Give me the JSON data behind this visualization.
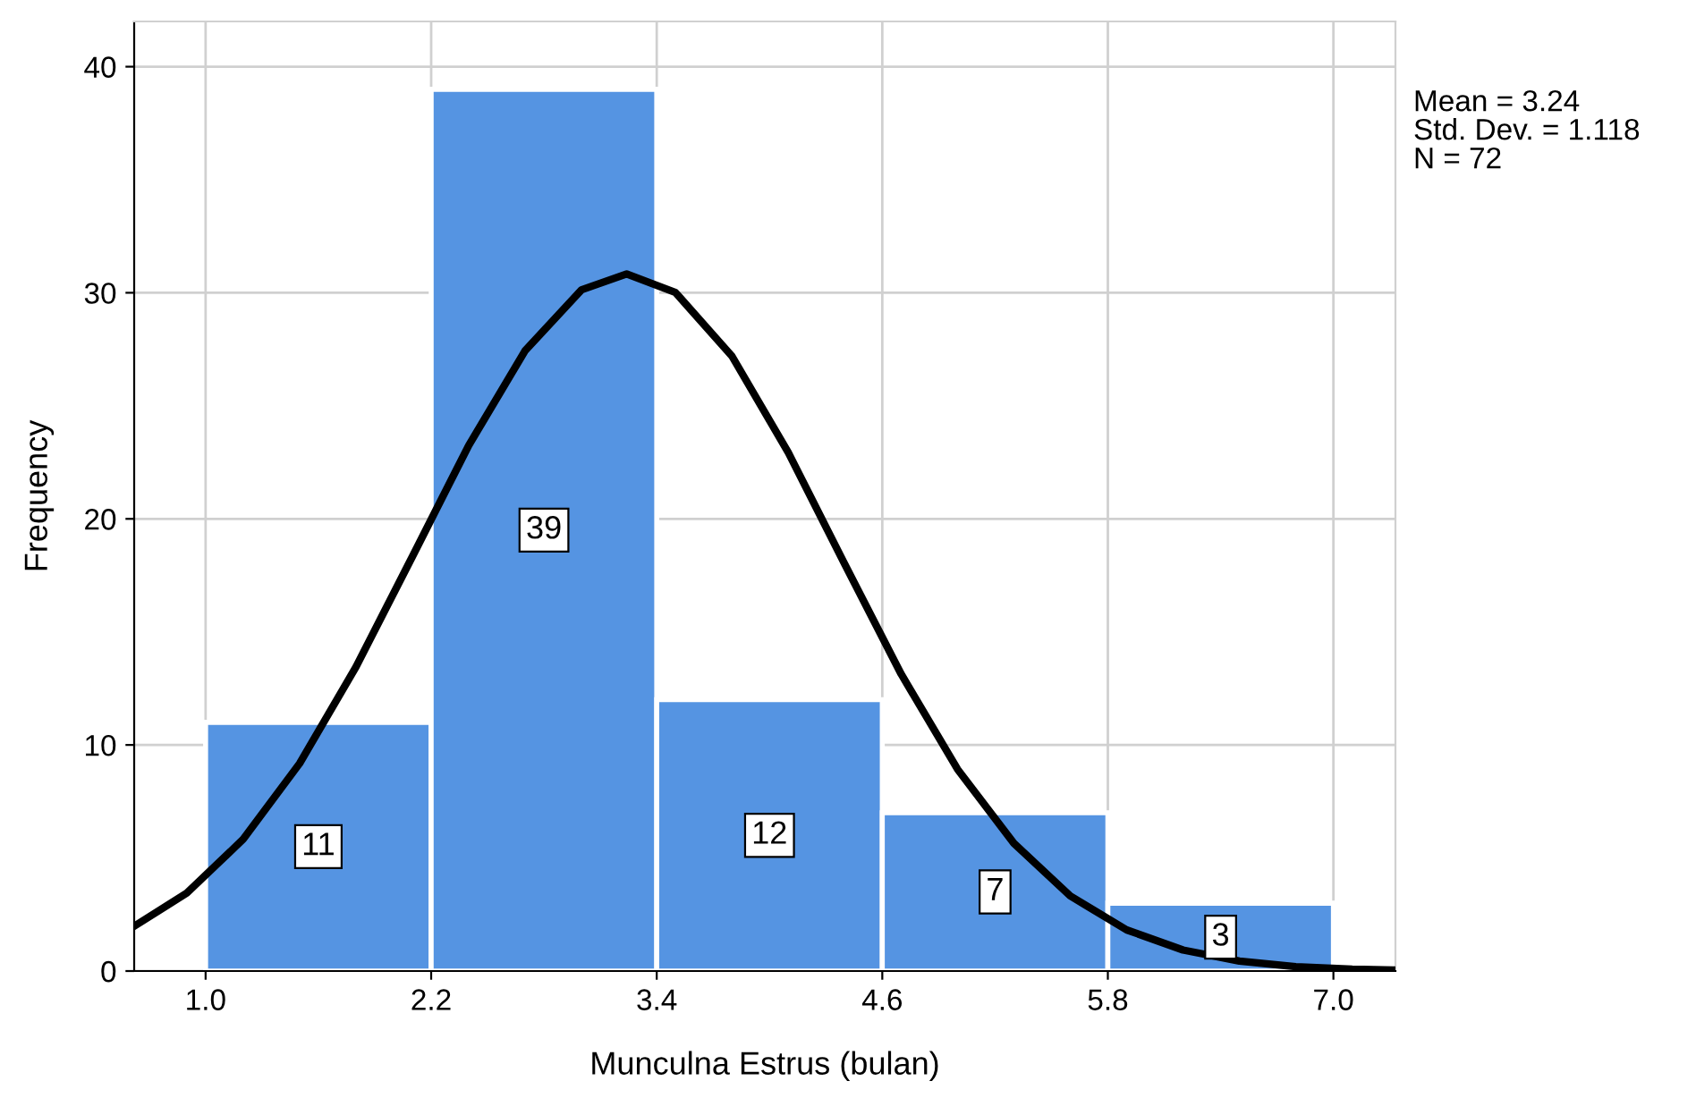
{
  "chart_data": {
    "type": "histogram",
    "xlabel": "Munculna Estrus (bulan)",
    "ylabel": "Frequency",
    "bins": [
      1.0,
      2.2,
      3.4,
      4.6,
      5.8,
      7.0
    ],
    "values": [
      11,
      39,
      12,
      7,
      3
    ],
    "color": "#5594e2",
    "value_labels": [
      "11",
      "39",
      "12",
      "7",
      "3"
    ],
    "xlim": [
      0.62,
      7.33
    ],
    "ylim": [
      0,
      42
    ],
    "xticks": [
      {
        "value": 1.0,
        "label": "1.0"
      },
      {
        "value": 2.2,
        "label": "2.2"
      },
      {
        "value": 3.4,
        "label": "3.4"
      },
      {
        "value": 4.6,
        "label": "4.6"
      },
      {
        "value": 5.8,
        "label": "5.8"
      },
      {
        "value": 7.0,
        "label": "7.0"
      }
    ],
    "yticks": [
      0,
      10,
      20,
      30,
      40
    ],
    "grid": true,
    "series": [
      {
        "type": "line",
        "color": "#000000",
        "x": [
          0.62,
          0.9,
          1.2,
          1.5,
          1.8,
          2.1,
          2.4,
          2.7,
          3.0,
          3.24,
          3.5,
          3.8,
          4.1,
          4.4,
          4.7,
          5.0,
          5.3,
          5.6,
          5.9,
          6.2,
          6.5,
          6.8,
          7.1,
          7.33
        ],
        "values": [
          1.98,
          3.45,
          5.83,
          9.18,
          13.45,
          18.33,
          23.25,
          27.44,
          30.13,
          30.83,
          30.01,
          27.2,
          22.93,
          18.0,
          13.14,
          8.93,
          5.65,
          3.32,
          1.82,
          0.93,
          0.44,
          0.19,
          0.08,
          0.04
        ]
      }
    ],
    "annotations": [
      "Mean = 3.24",
      "Std. Dev. = 1.118",
      "N = 72"
    ]
  }
}
